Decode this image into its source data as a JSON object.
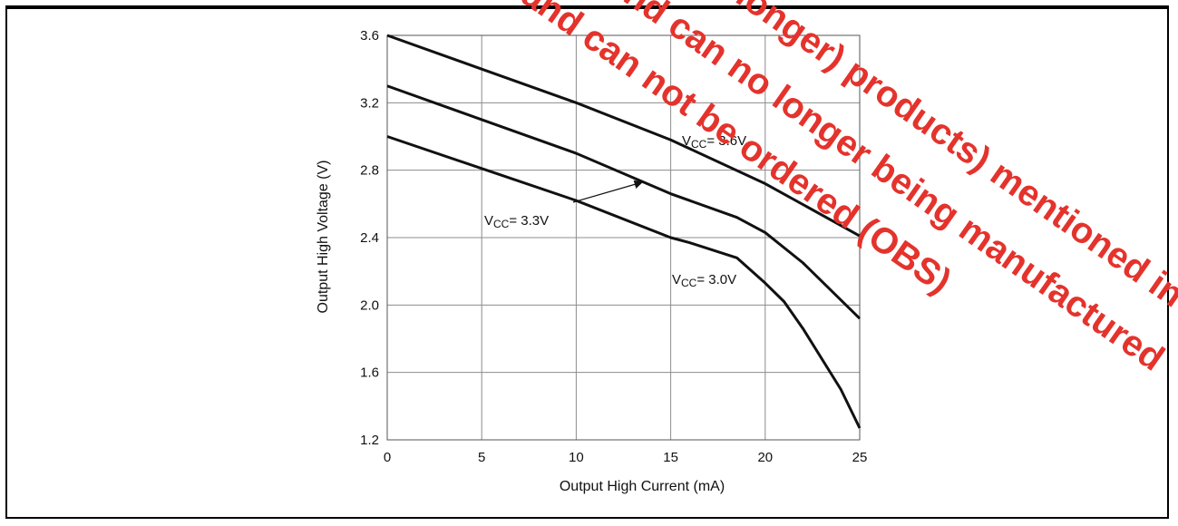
{
  "chart_data": {
    "type": "line",
    "title": "",
    "xlabel": "Output High Current (mA)",
    "ylabel": "Output High Voltage (V)",
    "xlim": [
      0,
      25
    ],
    "ylim": [
      1.2,
      3.6
    ],
    "grid": true,
    "xticks": [
      0,
      5,
      10,
      15,
      20,
      25
    ],
    "xtick_labels": [
      "0",
      "5",
      "10",
      "15",
      "20",
      "25"
    ],
    "yticks": [
      1.2,
      1.6,
      2.0,
      2.4,
      2.8,
      3.2,
      3.6
    ],
    "ytick_labels": [
      "1.2",
      "1.6",
      "2.0",
      "2.4",
      "2.8",
      "3.2",
      "3.6"
    ],
    "series": [
      {
        "name": "VCC = 3.6V",
        "x": [
          0,
          5,
          10,
          15,
          20,
          25
        ],
        "y": [
          3.6,
          3.4,
          3.2,
          2.98,
          2.72,
          2.41
        ]
      },
      {
        "name": "VCC = 3.3V",
        "x": [
          0,
          5,
          10,
          15,
          18.5,
          20,
          22,
          25
        ],
        "y": [
          3.3,
          3.1,
          2.9,
          2.66,
          2.52,
          2.43,
          2.25,
          1.92
        ]
      },
      {
        "name": "VCC = 3.0V",
        "x": [
          0,
          5,
          10,
          15,
          16,
          18.5,
          20,
          21,
          22,
          24,
          25
        ],
        "y": [
          3.0,
          2.81,
          2.62,
          2.4,
          2.37,
          2.28,
          2.13,
          2.02,
          1.86,
          1.5,
          1.27
        ]
      }
    ],
    "annotations": [
      {
        "label": "VCC = 3.6V",
        "main": "V",
        "sub": "CC",
        "rest": "= 3.6V"
      },
      {
        "label": "VCC = 3.3V",
        "main": "V",
        "sub": "CC",
        "rest": "= 3.3V"
      },
      {
        "label": "VCC = 3.0V",
        "main": "V",
        "sub": "CC",
        "rest": "= 3.0V"
      }
    ]
  },
  "watermark": {
    "lines": [
      "(or longer) products) mentioned in this",
      "and can no longer being manufactured",
      "and can not be ordered (OBS)"
    ],
    "color": "#e4332c"
  },
  "colors": {
    "line": "#111111",
    "grid": "#8c8c8c",
    "text": "#111111"
  }
}
